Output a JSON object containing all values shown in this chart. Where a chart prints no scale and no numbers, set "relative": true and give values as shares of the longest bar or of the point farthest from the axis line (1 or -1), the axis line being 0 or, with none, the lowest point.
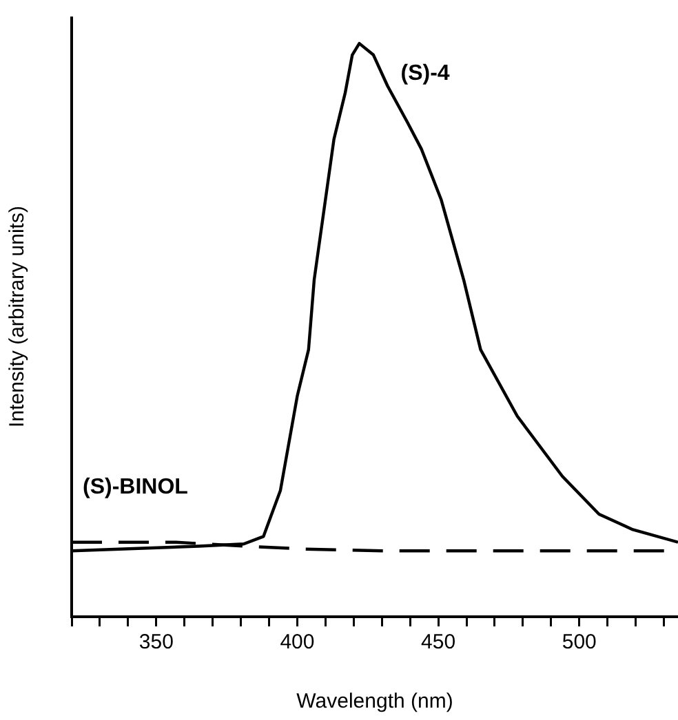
{
  "chart_data": {
    "type": "line",
    "xlabel": "Wavelength (nm)",
    "ylabel": "Intensity (arbitrary units)",
    "relative": true,
    "xlim": [
      320,
      535
    ],
    "xticks": [
      {
        "value": 320,
        "label": null
      },
      {
        "value": 330,
        "label": null
      },
      {
        "value": 340,
        "label": null
      },
      350,
      {
        "value": 360,
        "label": null
      },
      {
        "value": 370,
        "label": null
      },
      {
        "value": 380,
        "label": null
      },
      {
        "value": 390,
        "label": null
      },
      400,
      {
        "value": 410,
        "label": null
      },
      {
        "value": 420,
        "label": null
      },
      {
        "value": 430,
        "label": null
      },
      {
        "value": 440,
        "label": null
      },
      450,
      {
        "value": 460,
        "label": null
      },
      {
        "value": 470,
        "label": null
      },
      {
        "value": 480,
        "label": null
      },
      {
        "value": 490,
        "label": null
      },
      500,
      {
        "value": 510,
        "label": null
      },
      {
        "value": 520,
        "label": null
      },
      {
        "value": 530,
        "label": null
      }
    ],
    "grid": false,
    "legend": false,
    "marker": "none",
    "series": [
      {
        "name": "(S)-4",
        "color": "#000000",
        "line_style": "solid",
        "x": [
          320,
          365,
          381,
          388,
          394,
          400,
          404,
          406,
          413,
          417,
          419.5,
          422,
          427,
          432,
          439,
          444,
          451,
          459,
          465,
          478,
          494,
          507,
          519,
          535
        ],
        "values": [
          0.115,
          0.123,
          0.127,
          0.14,
          0.22,
          0.385,
          0.466,
          0.588,
          0.833,
          0.914,
          0.98,
          1.0,
          0.98,
          0.926,
          0.863,
          0.816,
          0.728,
          0.588,
          0.466,
          0.35,
          0.245,
          0.179,
          0.152,
          0.13
        ]
      },
      {
        "name": "(S)-BINOL",
        "color": "#000000",
        "line_style": "dashed",
        "x": [
          320,
          357,
          382,
          403,
          430,
          535
        ],
        "values": [
          0.13,
          0.13,
          0.123,
          0.118,
          0.115,
          0.115
        ]
      }
    ]
  }
}
